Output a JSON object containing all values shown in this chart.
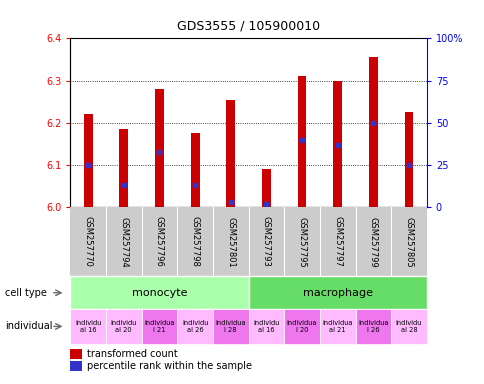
{
  "title": "GDS3555 / 105900010",
  "samples": [
    "GSM257770",
    "GSM257794",
    "GSM257796",
    "GSM257798",
    "GSM257801",
    "GSM257793",
    "GSM257795",
    "GSM257797",
    "GSM257799",
    "GSM257805"
  ],
  "bar_values": [
    6.22,
    6.185,
    6.28,
    6.175,
    6.255,
    6.09,
    6.31,
    6.3,
    6.355,
    6.225
  ],
  "bar_base": 6.0,
  "percentile_values": [
    25,
    13,
    33,
    13,
    3,
    2,
    40,
    37,
    50,
    25
  ],
  "ylim": [
    6.0,
    6.4
  ],
  "y2lim": [
    0,
    100
  ],
  "y_ticks": [
    6.0,
    6.1,
    6.2,
    6.3,
    6.4
  ],
  "y2_ticks": [
    0,
    25,
    50,
    75,
    100
  ],
  "y2_ticklabels": [
    "0",
    "25",
    "50",
    "75",
    "100%"
  ],
  "bar_color": "#cc0000",
  "percentile_color": "#3333cc",
  "bar_width": 0.25,
  "monocyte_color": "#aaffaa",
  "macrophage_color": "#66dd66",
  "sample_bg_color": "#cccccc",
  "indiv_colors": [
    "#ffbbff",
    "#ffbbff",
    "#ee77ee",
    "#ffbbff",
    "#ee77ee",
    "#ffbbff",
    "#ee77ee",
    "#ffbbff",
    "#ee77ee",
    "#ffbbff"
  ],
  "indiv_labels": [
    "individu\nal 16",
    "individu\nal 20",
    "individua\nl 21",
    "individu\nal 26",
    "individua\nl 28",
    "individu\nal 16",
    "individua\nl 20",
    "individua\nal 21",
    "individua\nl 26",
    "individu\nal 28"
  ],
  "fig_width": 4.85,
  "fig_height": 3.84,
  "dpi": 100
}
